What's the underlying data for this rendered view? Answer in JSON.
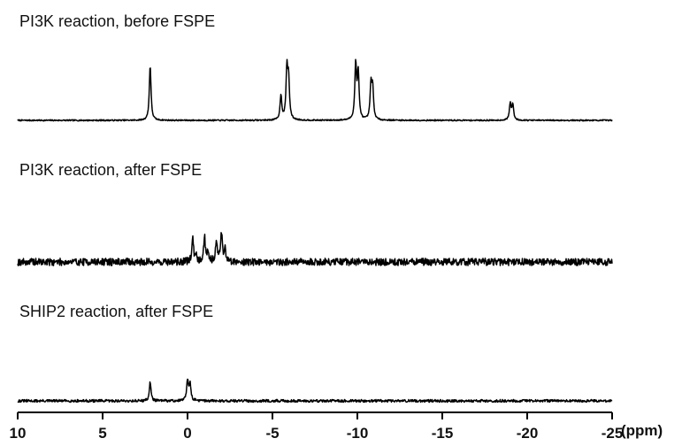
{
  "chart_data": {
    "type": "line",
    "xlabel": "(ppm)",
    "x_reversed": true,
    "xlim": [
      10,
      -25
    ],
    "xticks": [
      10,
      5,
      0,
      -5,
      -10,
      -15,
      -20,
      -25
    ],
    "xtick_labels": [
      "10",
      "5",
      "0",
      "-5",
      "-10",
      "-15",
      "-20",
      "-25"
    ],
    "grid": false,
    "series": [
      {
        "name": "PI3K reaction, before FSPE",
        "noise": 0.012,
        "peaks": [
          {
            "ppm": 2.2,
            "height": 1.0
          },
          {
            "ppm": -5.5,
            "height": 0.45
          },
          {
            "ppm": -5.85,
            "height": 0.9
          },
          {
            "ppm": -5.95,
            "height": 0.7
          },
          {
            "ppm": -9.9,
            "height": 1.0
          },
          {
            "ppm": -10.05,
            "height": 0.85
          },
          {
            "ppm": -10.8,
            "height": 0.62
          },
          {
            "ppm": -10.9,
            "height": 0.55
          },
          {
            "ppm": -19.0,
            "height": 0.3
          },
          {
            "ppm": -19.15,
            "height": 0.28
          }
        ]
      },
      {
        "name": "PI3K reaction, after FSPE",
        "noise": 0.09,
        "peaks": [
          {
            "ppm": -0.3,
            "height": 0.55
          },
          {
            "ppm": -0.5,
            "height": 0.2
          },
          {
            "ppm": -1.0,
            "height": 0.6
          },
          {
            "ppm": -1.2,
            "height": 0.25
          },
          {
            "ppm": -1.7,
            "height": 0.55
          },
          {
            "ppm": -2.0,
            "height": 0.7
          },
          {
            "ppm": -2.2,
            "height": 0.3
          }
        ]
      },
      {
        "name": "SHIP2 reaction, after FSPE",
        "noise": 0.05,
        "peaks": [
          {
            "ppm": 2.2,
            "height": 0.7
          },
          {
            "ppm": 0.0,
            "height": 0.75
          },
          {
            "ppm": -0.15,
            "height": 0.65
          }
        ]
      }
    ]
  }
}
